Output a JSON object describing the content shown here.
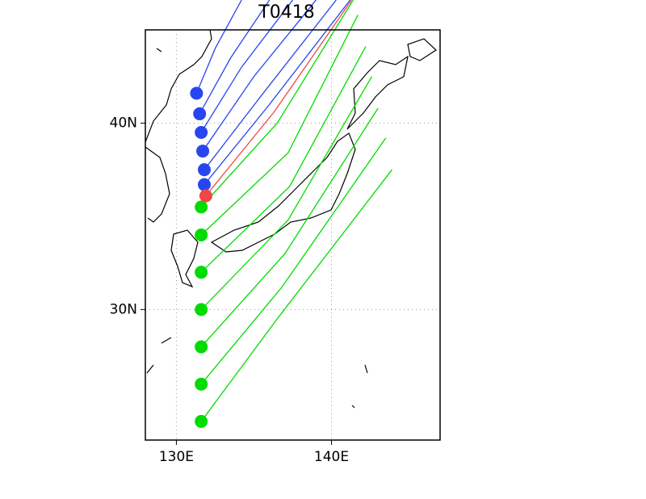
{
  "chart_data": {
    "type": "trajectory",
    "title": "T0418",
    "xlim": [
      128,
      147
    ],
    "ylim": [
      23,
      45
    ],
    "xticks": [
      {
        "value": 130,
        "label": "130E"
      },
      {
        "value": 140,
        "label": "140E"
      }
    ],
    "yticks": [
      {
        "value": 30,
        "label": "30N"
      },
      {
        "value": 40,
        "label": "40N"
      }
    ],
    "grid": true,
    "series": [
      {
        "color": "#00dc00",
        "x": [
          131.6,
          136.5,
          143.9
        ],
        "y": [
          24,
          29.5,
          37.5
        ]
      },
      {
        "color": "#00dc00",
        "x": [
          131.6,
          136.8,
          143.5
        ],
        "y": [
          26,
          31.2,
          39.2
        ]
      },
      {
        "color": "#00dc00",
        "x": [
          131.6,
          137.0,
          143.0
        ],
        "y": [
          28,
          33.0,
          40.8
        ]
      },
      {
        "color": "#00dc00",
        "x": [
          131.6,
          137.2,
          142.6
        ],
        "y": [
          30,
          34.8,
          42.5
        ]
      },
      {
        "color": "#00dc00",
        "x": [
          131.6,
          137.3,
          142.2
        ],
        "y": [
          32,
          36.6,
          44.1
        ]
      },
      {
        "color": "#00dc00",
        "x": [
          131.6,
          137.2,
          141.7
        ],
        "y": [
          34,
          38.4,
          45.8
        ]
      },
      {
        "color": "#00dc00",
        "x": [
          131.6,
          136.5,
          141.4
        ],
        "y": [
          35.5,
          40.0,
          46.6
        ]
      },
      {
        "color": "#2846f0",
        "x": [
          131.3,
          132.5,
          134.2
        ],
        "y": [
          41.6,
          44.0,
          46.6
        ]
      },
      {
        "color": "#2846f0",
        "x": [
          131.5,
          133.5,
          136.0
        ],
        "y": [
          40.5,
          43.5,
          46.6
        ]
      },
      {
        "color": "#2846f0",
        "x": [
          131.6,
          134.2,
          137.5
        ],
        "y": [
          39.5,
          43.0,
          46.6
        ]
      },
      {
        "color": "#2846f0",
        "x": [
          131.7,
          135.0,
          139.0
        ],
        "y": [
          38.5,
          42.5,
          46.6
        ]
      },
      {
        "color": "#2846f0",
        "x": [
          131.8,
          135.5,
          140.3
        ],
        "y": [
          37.5,
          41.5,
          46.6
        ]
      },
      {
        "color": "#2846f0",
        "x": [
          131.8,
          136.0,
          141.2
        ],
        "y": [
          36.7,
          41.0,
          46.6
        ]
      },
      {
        "color": "#f04646",
        "x": [
          131.9,
          136.3,
          141.3
        ],
        "y": [
          36.1,
          40.6,
          46.6
        ]
      }
    ]
  }
}
